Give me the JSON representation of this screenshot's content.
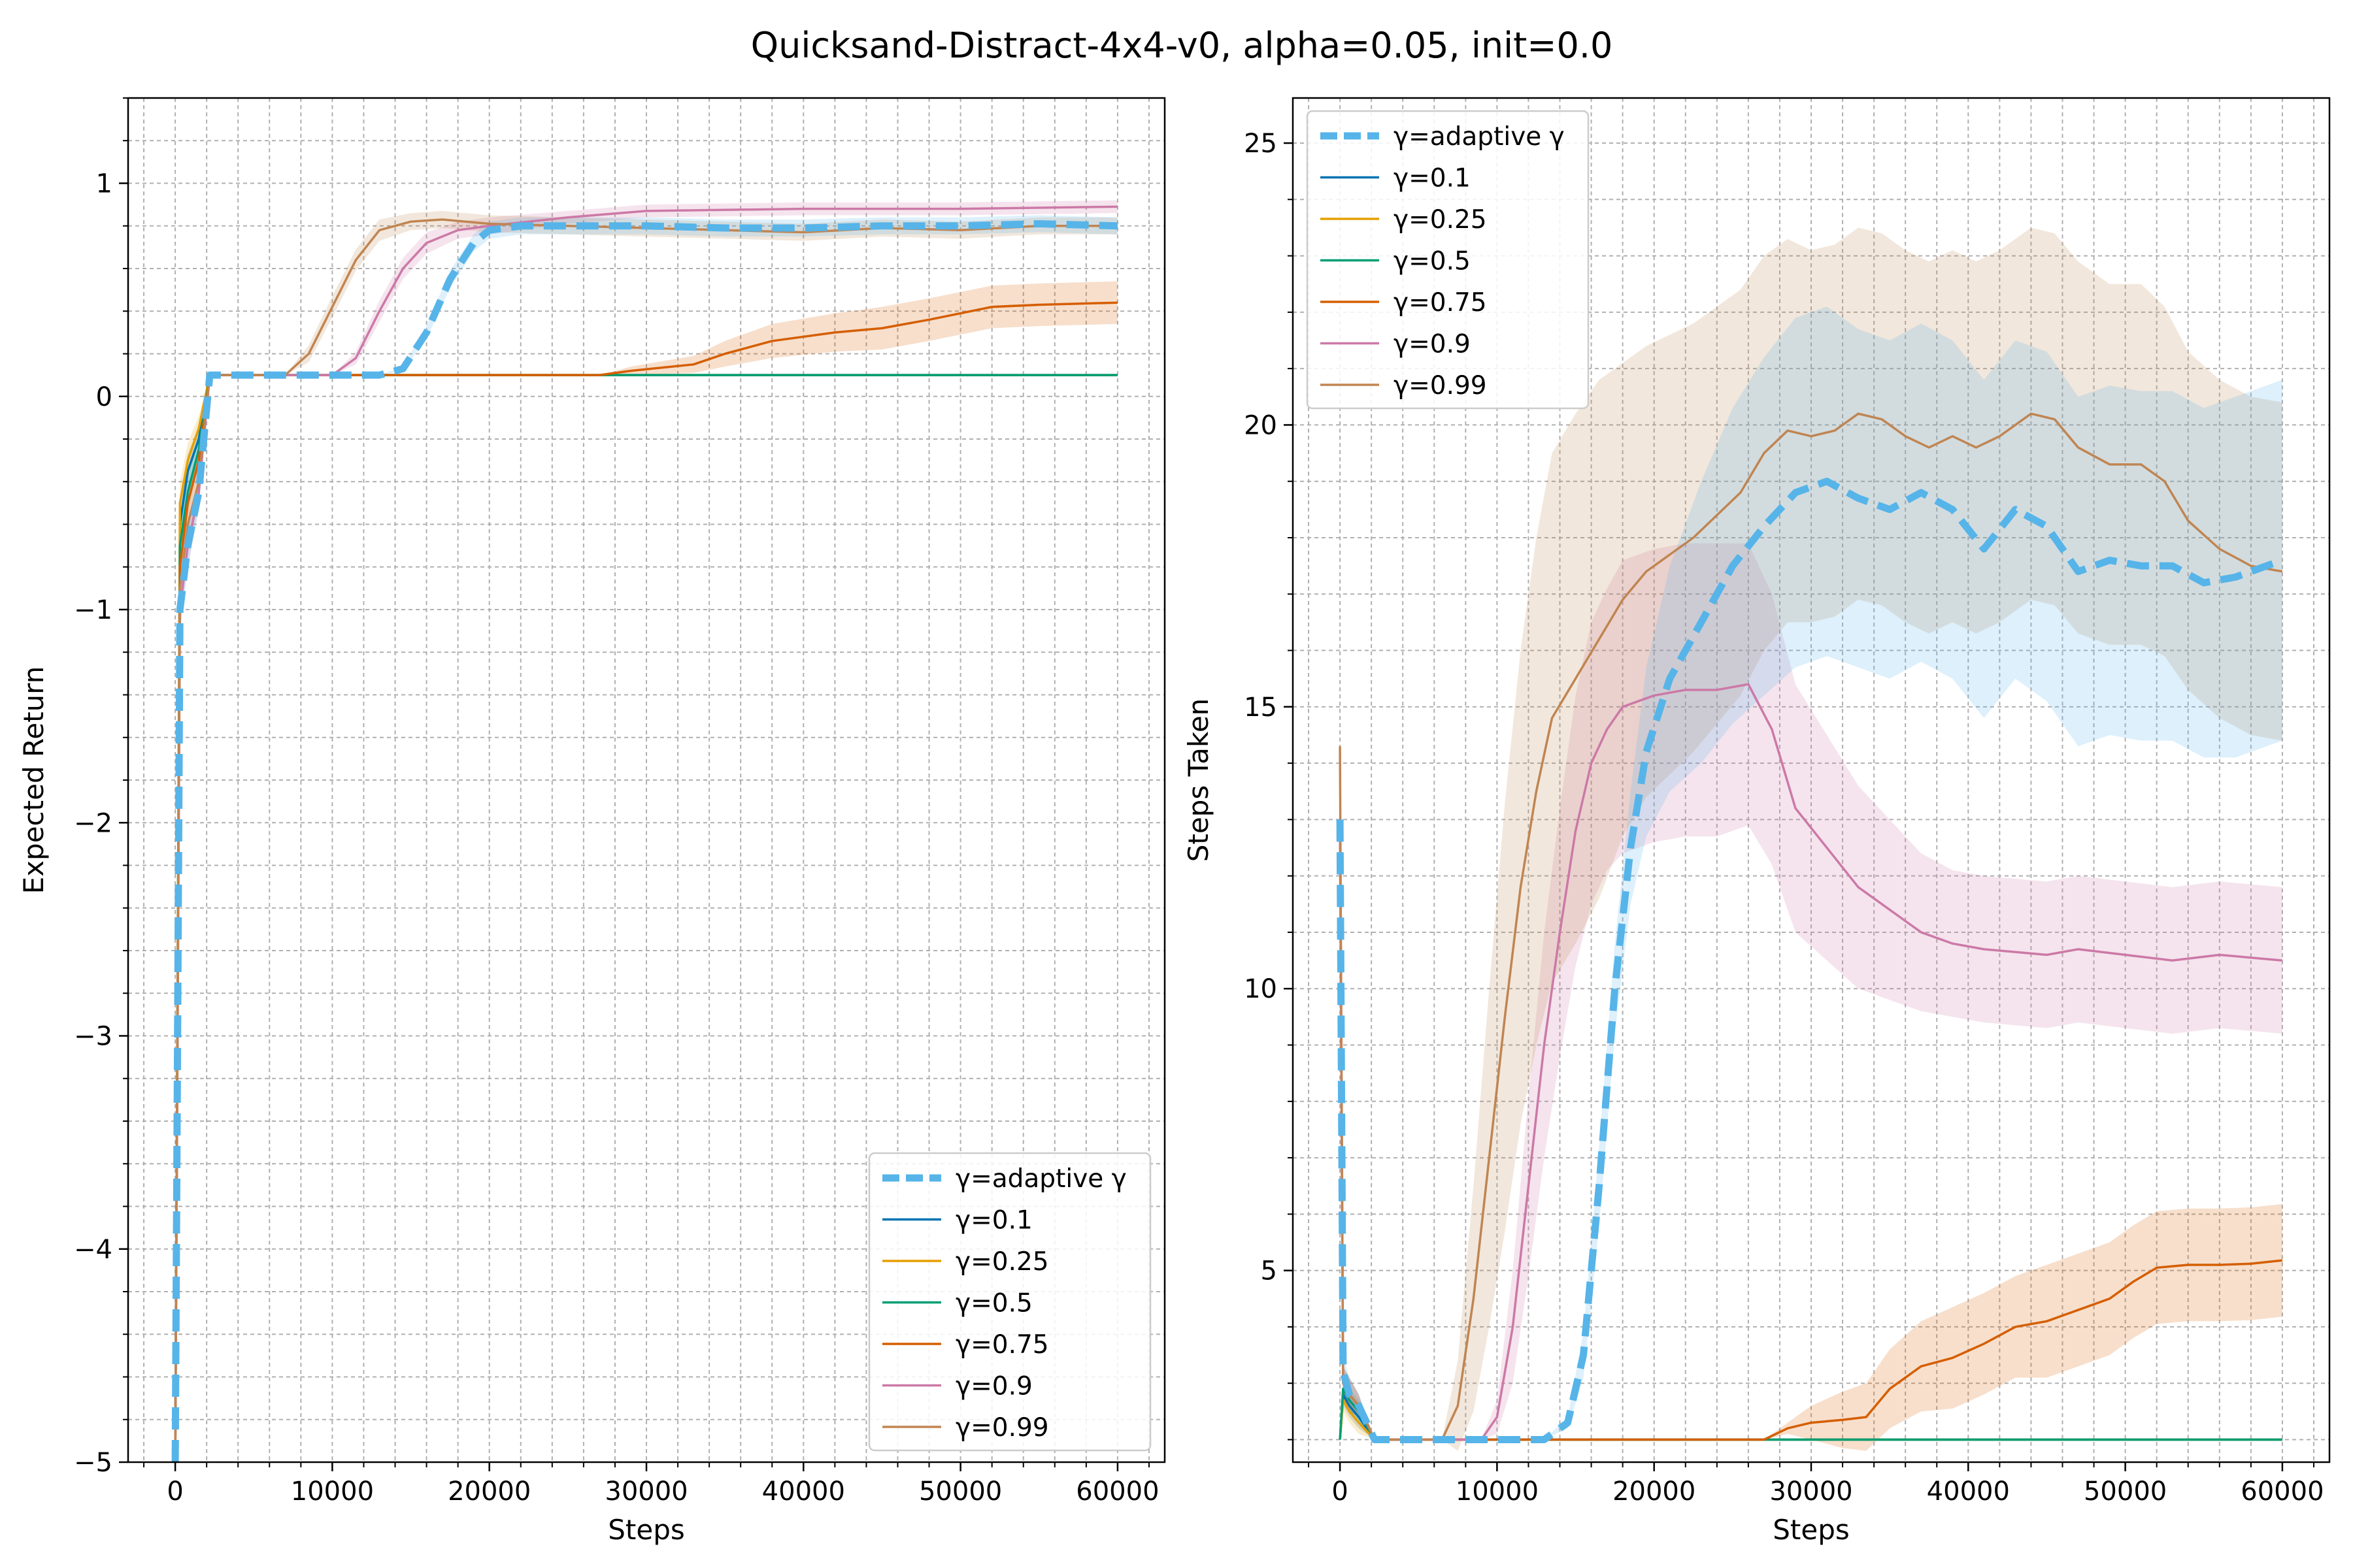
{
  "figure": {
    "suptitle": "Quicksand-Distract-4x4-v0, alpha=0.05, init=0.0"
  },
  "chart_data": [
    {
      "type": "line",
      "xlabel": "Steps",
      "ylabel": "Expected Return",
      "xlim": [
        -3000,
        63000
      ],
      "ylim": [
        -5,
        1.4
      ],
      "xticks": [
        0,
        10000,
        20000,
        30000,
        40000,
        50000,
        60000
      ],
      "xtick_labels": [
        "0",
        "10000",
        "20000",
        "30000",
        "40000",
        "50000",
        "60000"
      ],
      "yticks": [
        -5,
        -4,
        -3,
        -2,
        -1,
        0,
        1
      ],
      "ytick_labels": [
        "−5",
        "−4",
        "−3",
        "−2",
        "−1",
        "0",
        "1"
      ],
      "grid": true,
      "legend_position": "lower-right",
      "series": [
        {
          "name": "γ=adaptive γ",
          "color": "#56b4e9",
          "dashed": true,
          "x": [
            0,
            300,
            800,
            1500,
            2200,
            13000,
            14500,
            16000,
            17500,
            19000,
            20000,
            22000,
            26000,
            30000,
            35000,
            40000,
            45000,
            50000,
            55000,
            60000
          ],
          "y": [
            -5,
            -1.0,
            -0.7,
            -0.45,
            0.1,
            0.1,
            0.13,
            0.3,
            0.55,
            0.72,
            0.78,
            0.8,
            0.8,
            0.8,
            0.79,
            0.79,
            0.8,
            0.8,
            0.81,
            0.8
          ],
          "band": [
            0.06,
            0.1,
            0.1,
            0.08,
            0,
            0,
            0.01,
            0.03,
            0.04,
            0.04,
            0.04,
            0.04,
            0.04,
            0.04,
            0.04,
            0.04,
            0.04,
            0.04,
            0.04,
            0.04
          ]
        },
        {
          "name": "γ=0.1",
          "color": "#0072b2",
          "dashed": false,
          "x": [
            0,
            300,
            800,
            1500,
            2200,
            60000
          ],
          "y": [
            -5,
            -0.6,
            -0.35,
            -0.2,
            0.1,
            0.1
          ],
          "band": [
            0,
            0.1,
            0.08,
            0.06,
            0,
            0
          ]
        },
        {
          "name": "γ=0.25",
          "color": "#e69f00",
          "dashed": false,
          "x": [
            0,
            300,
            800,
            1500,
            2200,
            60000
          ],
          "y": [
            -5,
            -0.5,
            -0.3,
            -0.15,
            0.1,
            0.1
          ],
          "band": [
            0,
            0.1,
            0.08,
            0.06,
            0,
            0
          ]
        },
        {
          "name": "γ=0.5",
          "color": "#009e73",
          "dashed": false,
          "x": [
            0,
            300,
            800,
            1500,
            2200,
            60000
          ],
          "y": [
            -5,
            -0.7,
            -0.45,
            -0.25,
            0.1,
            0.1
          ],
          "band": [
            0,
            0.1,
            0.08,
            0.06,
            0,
            0
          ]
        },
        {
          "name": "γ=0.75",
          "color": "#d55e00",
          "dashed": false,
          "x": [
            0,
            300,
            800,
            1500,
            2200,
            27000,
            29000,
            33000,
            35000,
            38000,
            42000,
            45000,
            48000,
            52000,
            55000,
            60000
          ],
          "y": [
            -5,
            -0.8,
            -0.5,
            -0.3,
            0.1,
            0.1,
            0.12,
            0.15,
            0.2,
            0.26,
            0.3,
            0.32,
            0.36,
            0.42,
            0.43,
            0.44
          ],
          "band": [
            0,
            0.1,
            0.08,
            0.06,
            0,
            0,
            0.02,
            0.04,
            0.06,
            0.08,
            0.09,
            0.1,
            0.1,
            0.1,
            0.1,
            0.1
          ]
        },
        {
          "name": "γ=0.9",
          "color": "#cc79a7",
          "dashed": false,
          "x": [
            0,
            300,
            800,
            1500,
            2200,
            10000,
            11500,
            13000,
            14500,
            16000,
            18000,
            20000,
            25000,
            30000,
            40000,
            50000,
            60000
          ],
          "y": [
            -5,
            -1.0,
            -0.7,
            -0.45,
            0.1,
            0.1,
            0.18,
            0.4,
            0.6,
            0.72,
            0.78,
            0.8,
            0.84,
            0.87,
            0.88,
            0.88,
            0.89
          ],
          "band": [
            0,
            0.1,
            0.1,
            0.08,
            0,
            0,
            0.03,
            0.05,
            0.05,
            0.05,
            0.04,
            0.04,
            0.03,
            0.03,
            0.03,
            0.03,
            0.03
          ]
        },
        {
          "name": "γ=0.99",
          "color": "#c08552",
          "dashed": false,
          "x": [
            0,
            300,
            800,
            1500,
            2200,
            7000,
            8500,
            10000,
            11500,
            13000,
            15000,
            17000,
            20000,
            25000,
            30000,
            35000,
            40000,
            45000,
            50000,
            55000,
            60000
          ],
          "y": [
            -5,
            -0.9,
            -0.6,
            -0.4,
            0.1,
            0.1,
            0.2,
            0.42,
            0.64,
            0.78,
            0.82,
            0.83,
            0.81,
            0.8,
            0.79,
            0.78,
            0.77,
            0.79,
            0.78,
            0.8,
            0.8
          ],
          "band": [
            0,
            0.15,
            0.12,
            0.1,
            0,
            0,
            0.04,
            0.05,
            0.05,
            0.05,
            0.04,
            0.04,
            0.04,
            0.04,
            0.04,
            0.04,
            0.04,
            0.04,
            0.04,
            0.04,
            0.04
          ]
        }
      ]
    },
    {
      "type": "line",
      "xlabel": "Steps",
      "ylabel": "Steps Taken",
      "xlim": [
        -3000,
        63000
      ],
      "ylim": [
        1.6,
        25.8
      ],
      "xticks": [
        0,
        10000,
        20000,
        30000,
        40000,
        50000,
        60000
      ],
      "xtick_labels": [
        "0",
        "10000",
        "20000",
        "30000",
        "40000",
        "50000",
        "60000"
      ],
      "yticks": [
        5,
        10,
        15,
        20,
        25
      ],
      "ytick_labels": [
        "5",
        "10",
        "15",
        "20",
        "25"
      ],
      "grid": true,
      "legend_position": "upper-left",
      "series": [
        {
          "name": "γ=adaptive γ",
          "color": "#56b4e9",
          "dashed": true,
          "x": [
            0,
            200,
            600,
            1200,
            2200,
            13000,
            14500,
            15500,
            16500,
            17500,
            18500,
            19500,
            21000,
            23000,
            25000,
            27000,
            29000,
            31000,
            33000,
            35000,
            37000,
            39000,
            41000,
            43000,
            45000,
            47000,
            49000,
            51000,
            53000,
            55000,
            57000,
            60000
          ],
          "y": [
            13.0,
            3.2,
            2.8,
            2.6,
            2.0,
            2.0,
            2.3,
            3.5,
            6.5,
            10.0,
            12.5,
            14.2,
            15.5,
            16.5,
            17.5,
            18.2,
            18.8,
            19.0,
            18.7,
            18.5,
            18.8,
            18.5,
            17.8,
            18.5,
            18.2,
            17.4,
            17.6,
            17.5,
            17.5,
            17.2,
            17.3,
            17.6
          ],
          "band": [
            0,
            0.3,
            0.3,
            0.2,
            0,
            0,
            0.1,
            0.4,
            0.7,
            0.8,
            1.0,
            1.5,
            2.0,
            2.5,
            2.8,
            3.0,
            3.1,
            3.1,
            3.0,
            3.0,
            3.0,
            3.0,
            3.0,
            3.0,
            3.1,
            3.1,
            3.1,
            3.1,
            3.1,
            3.1,
            3.2,
            3.2
          ]
        },
        {
          "name": "γ=0.1",
          "color": "#0072b2",
          "dashed": false,
          "x": [
            0,
            200,
            600,
            1200,
            2200,
            60000
          ],
          "y": [
            2.0,
            2.8,
            2.6,
            2.4,
            2.0,
            2.0
          ],
          "band": [
            0,
            0.2,
            0.2,
            0.2,
            0,
            0
          ]
        },
        {
          "name": "γ=0.25",
          "color": "#e69f00",
          "dashed": false,
          "x": [
            0,
            200,
            600,
            1200,
            2200,
            60000
          ],
          "y": [
            2.0,
            2.7,
            2.5,
            2.3,
            2.0,
            2.0
          ],
          "band": [
            0,
            0.2,
            0.2,
            0.2,
            0,
            0
          ]
        },
        {
          "name": "γ=0.5",
          "color": "#009e73",
          "dashed": false,
          "x": [
            0,
            200,
            600,
            1200,
            2200,
            60000
          ],
          "y": [
            2.0,
            2.9,
            2.7,
            2.5,
            2.0,
            2.0
          ],
          "band": [
            0,
            0.2,
            0.2,
            0.2,
            0,
            0
          ]
        },
        {
          "name": "γ=0.75",
          "color": "#d55e00",
          "dashed": false,
          "x": [
            0,
            200,
            600,
            1200,
            2200,
            27000,
            28500,
            30000,
            32000,
            33500,
            35000,
            37000,
            39000,
            41000,
            43000,
            45000,
            47000,
            49000,
            50500,
            52000,
            54000,
            56000,
            58000,
            60000
          ],
          "y": [
            13.0,
            3.0,
            2.8,
            2.6,
            2.0,
            2.0,
            2.2,
            2.3,
            2.35,
            2.4,
            2.9,
            3.3,
            3.45,
            3.7,
            4.0,
            4.1,
            4.3,
            4.5,
            4.8,
            5.05,
            5.1,
            5.1,
            5.12,
            5.18
          ],
          "band": [
            0,
            0.3,
            0.3,
            0.2,
            0,
            0,
            0.1,
            0.3,
            0.5,
            0.6,
            0.7,
            0.8,
            0.9,
            0.9,
            0.9,
            1.0,
            1.0,
            1.0,
            1.0,
            1.0,
            1.0,
            1.0,
            1.0,
            1.0
          ]
        },
        {
          "name": "γ=0.9",
          "color": "#cc79a7",
          "dashed": false,
          "x": [
            0,
            200,
            600,
            1200,
            2200,
            9000,
            10000,
            11000,
            12000,
            13000,
            14000,
            15000,
            16000,
            17000,
            18000,
            19000,
            20000,
            22000,
            24000,
            26000,
            27500,
            29000,
            31000,
            33000,
            35000,
            37000,
            39000,
            41000,
            45000,
            47000,
            50000,
            53000,
            56000,
            60000
          ],
          "y": [
            13.0,
            3.0,
            2.8,
            2.6,
            2.0,
            2.0,
            2.4,
            4.0,
            6.5,
            9.0,
            11.0,
            12.8,
            14.0,
            14.6,
            15.0,
            15.1,
            15.2,
            15.3,
            15.3,
            15.4,
            14.6,
            13.2,
            12.5,
            11.8,
            11.4,
            11.0,
            10.8,
            10.7,
            10.6,
            10.7,
            10.6,
            10.5,
            10.6,
            10.5
          ],
          "band": [
            0,
            0.3,
            0.3,
            0.2,
            0,
            0,
            0.3,
            1.0,
            1.6,
            2.0,
            2.2,
            2.4,
            2.5,
            2.5,
            2.6,
            2.6,
            2.6,
            2.6,
            2.6,
            2.5,
            2.4,
            2.2,
            2.0,
            1.8,
            1.6,
            1.4,
            1.3,
            1.3,
            1.3,
            1.3,
            1.3,
            1.3,
            1.3,
            1.3
          ]
        },
        {
          "name": "γ=0.99",
          "color": "#c08552",
          "dashed": false,
          "x": [
            0,
            200,
            600,
            1200,
            2200,
            6500,
            7500,
            8500,
            9500,
            10500,
            11500,
            12500,
            13500,
            15000,
            16500,
            18000,
            19500,
            21000,
            22500,
            24000,
            25500,
            27000,
            28500,
            30000,
            31500,
            33000,
            34500,
            36000,
            37500,
            39000,
            40500,
            42000,
            44000,
            45500,
            47000,
            49000,
            51000,
            52500,
            54000,
            56000,
            58000,
            60000
          ],
          "y": [
            14.3,
            3.0,
            2.8,
            2.6,
            2.0,
            2.0,
            2.6,
            4.5,
            7.0,
            9.5,
            11.8,
            13.5,
            14.8,
            15.5,
            16.2,
            16.9,
            17.4,
            17.7,
            18.0,
            18.4,
            18.8,
            19.5,
            19.9,
            19.8,
            19.9,
            20.2,
            20.1,
            19.8,
            19.6,
            19.8,
            19.6,
            19.8,
            20.2,
            20.1,
            19.6,
            19.3,
            19.3,
            19.0,
            18.3,
            17.8,
            17.5,
            17.4
          ],
          "band": [
            0,
            0.3,
            0.3,
            0.2,
            0,
            0,
            0.8,
            2.0,
            3.0,
            3.8,
            4.2,
            4.5,
            4.7,
            4.7,
            4.6,
            4.2,
            4.0,
            3.9,
            3.8,
            3.7,
            3.6,
            3.5,
            3.4,
            3.3,
            3.3,
            3.3,
            3.3,
            3.3,
            3.3,
            3.3,
            3.3,
            3.3,
            3.3,
            3.3,
            3.3,
            3.2,
            3.2,
            3.1,
            3.0,
            3.0,
            3.0,
            3.0
          ]
        }
      ]
    }
  ]
}
